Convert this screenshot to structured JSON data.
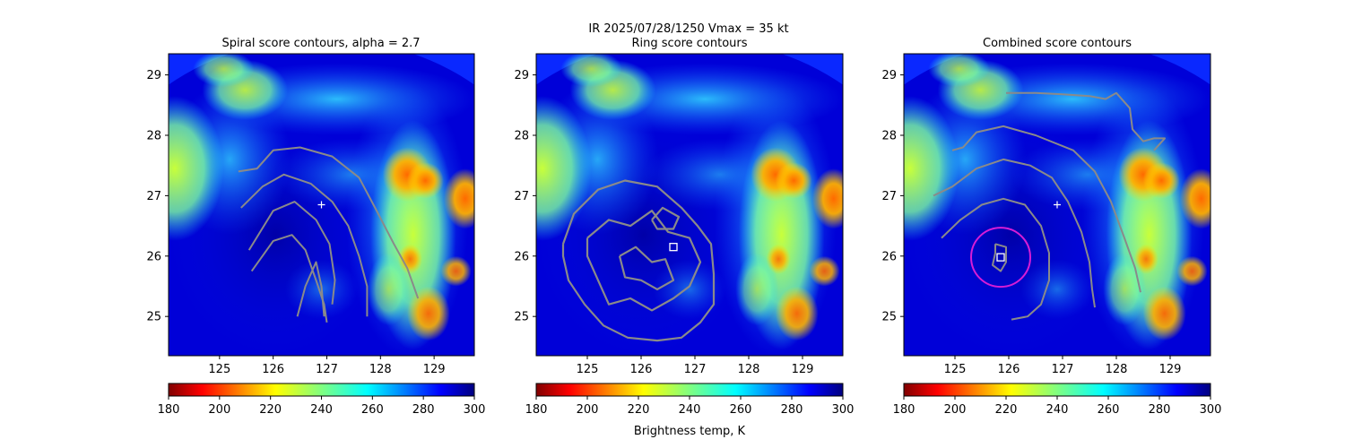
{
  "figure": {
    "suptitle": "IR  2025/07/28/1250    Vmax = 35 kt",
    "colorbar_label": "Brightness temp, K",
    "colormap": "jet_r",
    "background": "#ffffff"
  },
  "chart_data": [
    {
      "type": "heatmap",
      "title": "Spiral score contours, alpha =  2.7",
      "xlim": [
        124.05,
        129.75
      ],
      "ylim": [
        24.35,
        29.35
      ],
      "xticks": [
        125,
        126,
        127,
        128,
        129
      ],
      "yticks": [
        25,
        26,
        27,
        28,
        29
      ],
      "grid": false,
      "marker": {
        "kind": "plus",
        "lon": 126.9,
        "lat": 26.85,
        "color": "#ffffff"
      },
      "contours": [
        [
          [
            125.35,
            27.4
          ],
          [
            125.7,
            27.45
          ],
          [
            126.0,
            27.75
          ],
          [
            126.5,
            27.8
          ],
          [
            127.1,
            27.65
          ],
          [
            127.6,
            27.3
          ],
          [
            127.9,
            26.8
          ],
          [
            128.25,
            26.2
          ],
          [
            128.5,
            25.8
          ],
          [
            128.7,
            25.3
          ]
        ],
        [
          [
            125.4,
            26.8
          ],
          [
            125.8,
            27.15
          ],
          [
            126.2,
            27.35
          ],
          [
            126.7,
            27.2
          ],
          [
            127.1,
            26.9
          ],
          [
            127.4,
            26.5
          ],
          [
            127.6,
            26.0
          ],
          [
            127.75,
            25.5
          ],
          [
            127.75,
            25.0
          ]
        ],
        [
          [
            125.55,
            26.1
          ],
          [
            126.0,
            26.75
          ],
          [
            126.4,
            26.9
          ],
          [
            126.8,
            26.6
          ],
          [
            127.05,
            26.2
          ],
          [
            127.15,
            25.6
          ],
          [
            127.1,
            25.2
          ]
        ],
        [
          [
            125.6,
            25.75
          ],
          [
            126.0,
            26.25
          ],
          [
            126.35,
            26.35
          ],
          [
            126.6,
            26.1
          ],
          [
            126.8,
            25.6
          ],
          [
            126.95,
            25.2
          ],
          [
            127.0,
            24.9
          ]
        ],
        [
          [
            126.45,
            25.0
          ],
          [
            126.6,
            25.5
          ],
          [
            126.8,
            25.9
          ],
          [
            126.9,
            25.5
          ],
          [
            126.95,
            25.0
          ]
        ]
      ]
    },
    {
      "type": "heatmap",
      "title": "Ring score contours",
      "xlim": [
        124.05,
        129.75
      ],
      "ylim": [
        24.35,
        29.35
      ],
      "xticks": [
        125,
        126,
        127,
        128,
        129
      ],
      "yticks": [
        25,
        26,
        27,
        28,
        29
      ],
      "grid": false,
      "marker": {
        "kind": "square",
        "lon": 126.6,
        "lat": 26.15,
        "color": "#ffffff"
      },
      "contours": [
        [
          [
            124.55,
            26.2
          ],
          [
            124.75,
            26.7
          ],
          [
            125.2,
            27.1
          ],
          [
            125.7,
            27.25
          ],
          [
            126.3,
            27.15
          ],
          [
            126.75,
            26.8
          ],
          [
            127.05,
            26.5
          ],
          [
            127.3,
            26.2
          ],
          [
            127.35,
            25.7
          ],
          [
            127.35,
            25.2
          ],
          [
            127.1,
            24.9
          ],
          [
            126.75,
            24.65
          ],
          [
            126.3,
            24.6
          ],
          [
            125.75,
            24.65
          ],
          [
            125.3,
            24.85
          ],
          [
            124.95,
            25.2
          ],
          [
            124.65,
            25.6
          ],
          [
            124.55,
            26.0
          ],
          [
            124.55,
            26.2
          ]
        ],
        [
          [
            125.0,
            26.3
          ],
          [
            125.4,
            26.6
          ],
          [
            125.8,
            26.5
          ],
          [
            126.2,
            26.75
          ],
          [
            126.5,
            26.4
          ],
          [
            126.9,
            26.3
          ],
          [
            127.1,
            25.9
          ],
          [
            126.9,
            25.5
          ],
          [
            126.6,
            25.3
          ],
          [
            126.2,
            25.1
          ],
          [
            125.8,
            25.3
          ],
          [
            125.4,
            25.2
          ],
          [
            125.2,
            25.6
          ],
          [
            125.0,
            26.0
          ],
          [
            125.0,
            26.3
          ]
        ],
        [
          [
            125.6,
            26.0
          ],
          [
            125.9,
            26.15
          ],
          [
            126.2,
            25.9
          ],
          [
            126.45,
            25.95
          ],
          [
            126.6,
            25.6
          ],
          [
            126.3,
            25.45
          ],
          [
            126.0,
            25.6
          ],
          [
            125.7,
            25.65
          ],
          [
            125.6,
            26.0
          ]
        ],
        [
          [
            126.2,
            26.6
          ],
          [
            126.4,
            26.8
          ],
          [
            126.7,
            26.65
          ],
          [
            126.6,
            26.45
          ],
          [
            126.3,
            26.45
          ],
          [
            126.2,
            26.6
          ]
        ]
      ]
    },
    {
      "type": "heatmap",
      "title": "Combined score contours",
      "xlim": [
        124.05,
        129.75
      ],
      "ylim": [
        24.35,
        29.35
      ],
      "xticks": [
        125,
        126,
        127,
        128,
        129
      ],
      "yticks": [
        25,
        26,
        27,
        28,
        29
      ],
      "grid": false,
      "marker": {
        "kind": "plus",
        "lon": 126.9,
        "lat": 26.85,
        "color": "#ffffff"
      },
      "square": {
        "lon": 125.85,
        "lat": 25.98,
        "color": "#ffffff"
      },
      "circle": {
        "lon": 125.85,
        "lat": 25.98,
        "radius_lon": 0.55,
        "color": "#d61dd6"
      },
      "contours": [
        [
          [
            125.95,
            28.7
          ],
          [
            126.5,
            28.7
          ],
          [
            127.0,
            28.68
          ],
          [
            127.5,
            28.65
          ],
          [
            127.8,
            28.6
          ],
          [
            128.0,
            28.7
          ],
          [
            128.25,
            28.45
          ],
          [
            128.3,
            28.1
          ],
          [
            128.5,
            27.9
          ],
          [
            128.7,
            27.95
          ],
          [
            128.9,
            27.95
          ],
          [
            128.7,
            27.75
          ]
        ],
        [
          [
            124.95,
            27.75
          ],
          [
            125.15,
            27.8
          ],
          [
            125.4,
            28.05
          ],
          [
            125.9,
            28.15
          ],
          [
            126.5,
            28.0
          ],
          [
            127.2,
            27.75
          ],
          [
            127.6,
            27.4
          ],
          [
            127.9,
            26.9
          ],
          [
            128.15,
            26.3
          ],
          [
            128.35,
            25.8
          ],
          [
            128.45,
            25.4
          ]
        ],
        [
          [
            124.6,
            27.0
          ],
          [
            124.95,
            27.15
          ],
          [
            125.4,
            27.45
          ],
          [
            125.9,
            27.6
          ],
          [
            126.4,
            27.5
          ],
          [
            126.8,
            27.3
          ],
          [
            127.1,
            26.9
          ],
          [
            127.35,
            26.4
          ],
          [
            127.5,
            25.9
          ],
          [
            127.55,
            25.45
          ],
          [
            127.6,
            25.15
          ]
        ],
        [
          [
            124.75,
            26.3
          ],
          [
            125.1,
            26.6
          ],
          [
            125.5,
            26.85
          ],
          [
            125.9,
            26.95
          ],
          [
            126.3,
            26.85
          ],
          [
            126.6,
            26.5
          ],
          [
            126.75,
            26.05
          ],
          [
            126.75,
            25.6
          ],
          [
            126.6,
            25.2
          ],
          [
            126.35,
            25.0
          ],
          [
            126.05,
            24.95
          ]
        ],
        [
          [
            125.75,
            26.2
          ],
          [
            125.95,
            26.15
          ],
          [
            125.95,
            25.9
          ],
          [
            125.85,
            25.75
          ],
          [
            125.7,
            25.85
          ],
          [
            125.75,
            26.05
          ],
          [
            125.75,
            26.2
          ]
        ]
      ]
    }
  ],
  "colorbar": {
    "min": 180,
    "max": 300,
    "ticks": [
      180,
      200,
      220,
      240,
      260,
      280,
      300
    ]
  }
}
